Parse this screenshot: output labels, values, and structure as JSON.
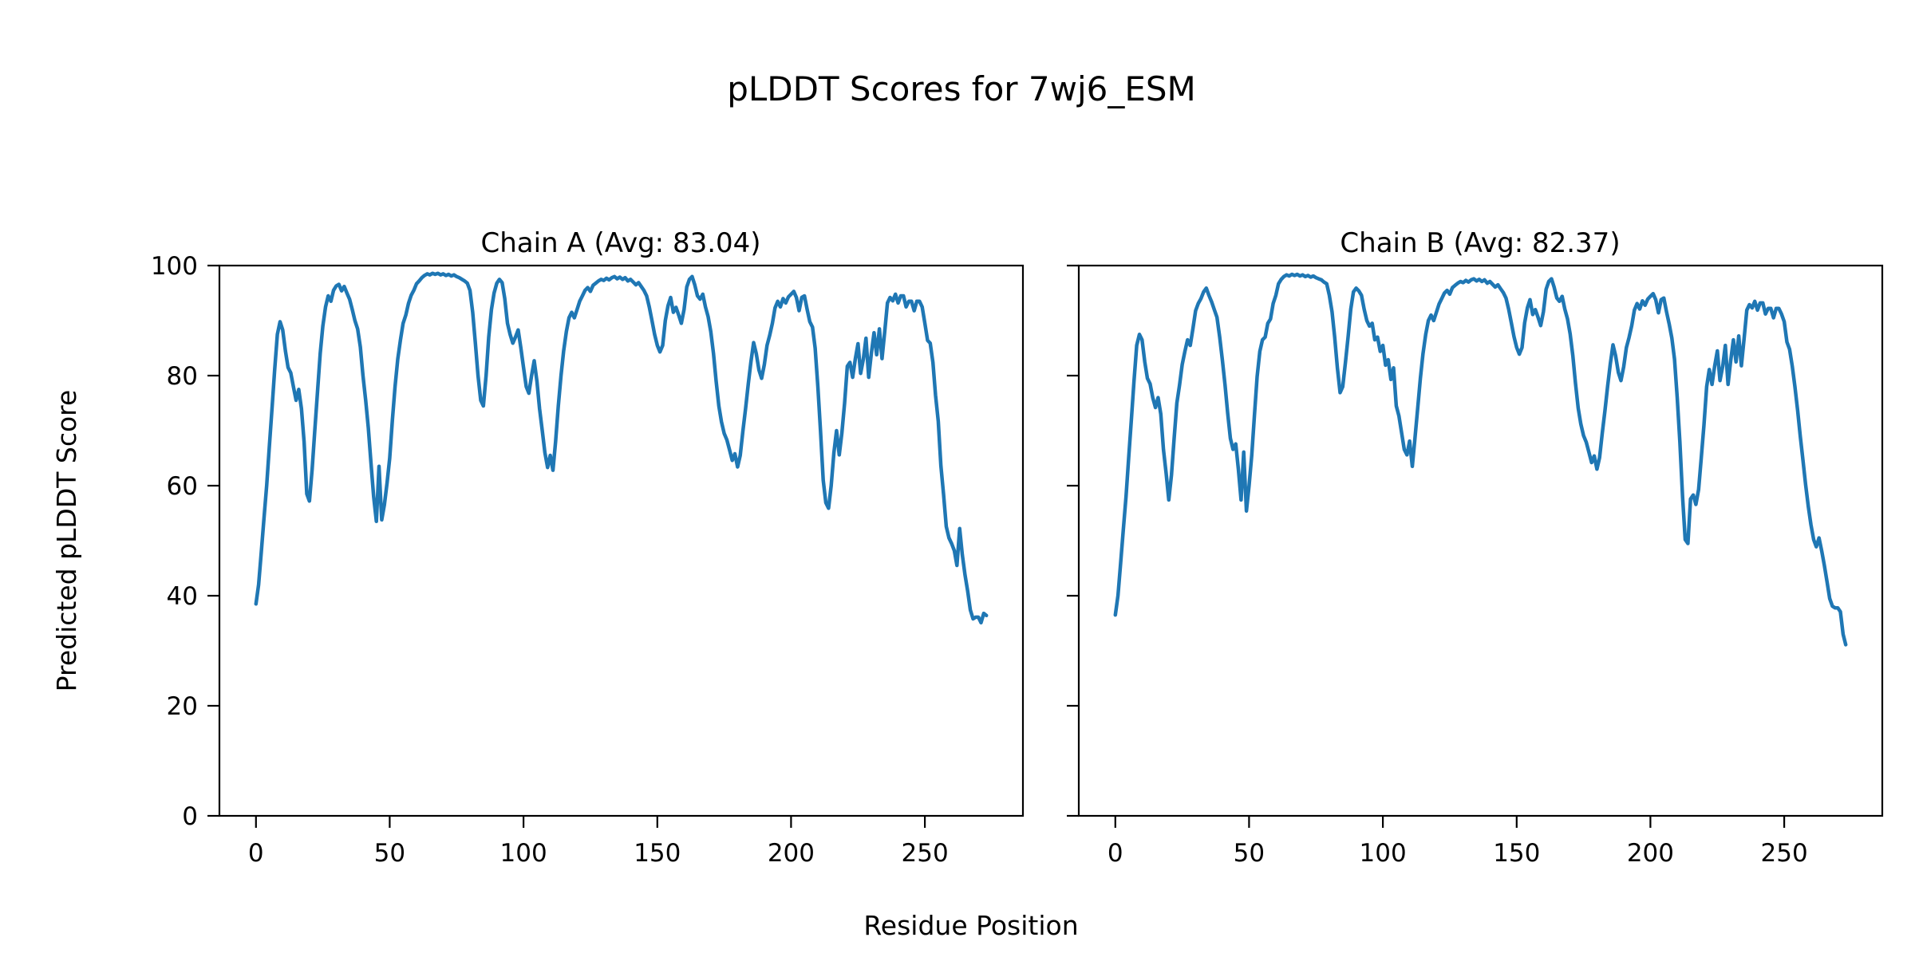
{
  "figure": {
    "suptitle": "pLDDT Scores for 7wj6_ESM",
    "xlabel": "Residue Position",
    "ylabel": "Predicted pLDDT Score",
    "line_color": "#1f77b4",
    "background": "#ffffff"
  },
  "chart_data": [
    {
      "type": "line",
      "title": "Chain A (Avg: 83.04)",
      "chain": "A",
      "avg_label": "83.04",
      "xlabel": "Residue Position",
      "ylabel": "Predicted pLDDT Score",
      "ylim": [
        0,
        100
      ],
      "xticks": [
        0,
        50,
        100,
        150,
        200,
        250
      ],
      "yticks": [
        0,
        20,
        40,
        60,
        80,
        100
      ],
      "show_ytick_labels": true,
      "grid": false,
      "legend": "none",
      "x_start": 0,
      "values": [
        38.5,
        42,
        48,
        54,
        60,
        67,
        74,
        81,
        87.5,
        89.8,
        88.3,
        84.5,
        81.5,
        80.5,
        78,
        75.5,
        77.5,
        74,
        68,
        58.5,
        57.2,
        63,
        70,
        77,
        84,
        89,
        92.5,
        94.5,
        93.5,
        95.5,
        96.3,
        96.6,
        95.4,
        96.2,
        95,
        93.9,
        92,
        90,
        88.5,
        85.2,
        80,
        75.5,
        70.5,
        64,
        58,
        53.5,
        63.5,
        53.8,
        56.5,
        60.5,
        65,
        72,
        78,
        83,
        86.5,
        89.5,
        91,
        93.1,
        94.6,
        95.5,
        96.7,
        97.2,
        97.8,
        98.2,
        98.5,
        98.3,
        98.6,
        98.4,
        98.6,
        98.3,
        98.5,
        98.2,
        98.4,
        98.1,
        98.3,
        98,
        97.8,
        97.5,
        97.2,
        96.8,
        95.5,
        91.5,
        86,
        80,
        75.5,
        74.5,
        80,
        87,
        92,
        95,
        96.8,
        97.5,
        96.9,
        94,
        89.5,
        87.5,
        85.9,
        87,
        88.3,
        85,
        81.5,
        78,
        76.8,
        80,
        82.7,
        79,
        74,
        70,
        66,
        63.3,
        65.5,
        62.8,
        68,
        74.5,
        80,
        84.5,
        88,
        90.5,
        91.5,
        90.5,
        92,
        93.5,
        94.5,
        95.5,
        96,
        95.3,
        96.4,
        96.8,
        97.2,
        97.5,
        97.3,
        97.7,
        97.4,
        97.8,
        98,
        97.6,
        97.9,
        97.5,
        97.8,
        97.2,
        97.5,
        97,
        96.5,
        96.9,
        96.2,
        95.5,
        94.5,
        92.5,
        90,
        87.5,
        85.5,
        84.3,
        85.5,
        90,
        92.7,
        94.2,
        91.5,
        92.4,
        91,
        89.5,
        92,
        96.1,
        97.5,
        98,
        96.5,
        94.5,
        93.9,
        94.8,
        92.5,
        90.7,
        88,
        84,
        79,
        74.5,
        71.6,
        69.5,
        68.3,
        66.5,
        64.6,
        65.8,
        63.4,
        65.5,
        70,
        74,
        78.5,
        82.5,
        86,
        84,
        81,
        79.5,
        82,
        85.5,
        87.3,
        89.5,
        92.3,
        93.5,
        92.5,
        94,
        93.2,
        94.3,
        94.8,
        95.3,
        94.2,
        91.8,
        94.2,
        94.5,
        92,
        89.8,
        88.8,
        85,
        78,
        70,
        61,
        56.9,
        55.9,
        60,
        66,
        70,
        65.6,
        69.6,
        75,
        81.7,
        82.4,
        79.7,
        83,
        85.8,
        80.4,
        83,
        86.8,
        79.7,
        84,
        87.8,
        83.8,
        88.5,
        83.1,
        88,
        93.2,
        94.2,
        93.6,
        94.8,
        93.2,
        94.5,
        94.5,
        92.5,
        93.5,
        93.5,
        91.8,
        93.5,
        93.5,
        92.5,
        89.5,
        86.4,
        85.9,
        82.4,
        76.4,
        71.7,
        63.6,
        58.3,
        52.6,
        50.5,
        49.5,
        48.2,
        45.5,
        52.2,
        47.5,
        43.8,
        40.8,
        37.4,
        35.8,
        36.1,
        36.1,
        35.1,
        36.8,
        36.4
      ]
    },
    {
      "type": "line",
      "title": "Chain B (Avg: 82.37)",
      "chain": "B",
      "avg_label": "82.37",
      "xlabel": "Residue Position",
      "ylabel": "Predicted pLDDT Score",
      "ylim": [
        0,
        100
      ],
      "xticks": [
        0,
        50,
        100,
        150,
        200,
        250
      ],
      "yticks": [
        0,
        20,
        40,
        60,
        80,
        100
      ],
      "show_ytick_labels": false,
      "grid": false,
      "legend": "none",
      "x_start": 0,
      "values": [
        36.5,
        40,
        46,
        52,
        58,
        65,
        72,
        79,
        85.5,
        87.5,
        86.5,
        82.5,
        79.5,
        78.5,
        76,
        74.2,
        76,
        73,
        66.6,
        62.2,
        57.4,
        62,
        68.6,
        75,
        78.3,
        82,
        84.4,
        86.5,
        85.5,
        88.5,
        91.8,
        93.1,
        94,
        95.2,
        95.9,
        94.6,
        93.4,
        92,
        90.6,
        87,
        82.9,
        78.3,
        73.2,
        68.6,
        66.6,
        67.6,
        63,
        57.4,
        66.1,
        55.4,
        60,
        65.6,
        72.7,
        79.8,
        84.4,
        86.5,
        87,
        89.5,
        90.3,
        93.1,
        94.6,
        96.7,
        97.5,
        98,
        98.3,
        98.1,
        98.4,
        98.2,
        98.4,
        98.1,
        98.3,
        98,
        98.2,
        97.9,
        98.1,
        97.8,
        97.6,
        97.4,
        97,
        96.7,
        94.6,
        91.6,
        87,
        81.4,
        76.9,
        78,
        82.4,
        87,
        92.1,
        95.2,
        95.9,
        95.4,
        94.6,
        92.1,
        90,
        89,
        89.5,
        86.5,
        87,
        84.4,
        85.5,
        81.9,
        82.9,
        79.3,
        81.4,
        74.5,
        72.7,
        69.6,
        66.6,
        65.6,
        68.1,
        63.5,
        68.6,
        74,
        79.5,
        84,
        87.5,
        90,
        91,
        90,
        91.5,
        93,
        94,
        95,
        95.5,
        94.8,
        96,
        96.4,
        96.8,
        97.1,
        96.9,
        97.3,
        97,
        97.4,
        97.6,
        97.2,
        97.5,
        97.1,
        97.4,
        96.8,
        97.1,
        96.6,
        96.1,
        96.5,
        95.8,
        95.1,
        94.1,
        92.1,
        89.6,
        87.1,
        85.1,
        83.9,
        85.1,
        89.6,
        92.3,
        93.8,
        91.1,
        92,
        90.6,
        89.1,
        91.6,
        95.7,
        97.1,
        97.6,
        96.1,
        94.1,
        93.5,
        94.4,
        92.1,
        90.3,
        87.6,
        83.6,
        78.6,
        74.1,
        71.2,
        69.1,
        67.9,
        66.1,
        64.2,
        65.4,
        63,
        65.1,
        69.6,
        73.6,
        78.1,
        82.1,
        85.6,
        83.6,
        80.6,
        79.1,
        81.6,
        85.1,
        86.9,
        89.1,
        91.9,
        93.1,
        92.1,
        93.6,
        92.8,
        93.9,
        94.4,
        94.9,
        93.8,
        91.4,
        93.8,
        94.1,
        91.6,
        89.4,
        86.8,
        83,
        76,
        68,
        58,
        50.2,
        49.5,
        57.6,
        58.3,
        56.6,
        59.3,
        65,
        71,
        78,
        81.1,
        78.4,
        81.7,
        84.5,
        79.1,
        81.7,
        85.5,
        78.4,
        82.7,
        86.5,
        82.5,
        87.2,
        81.8,
        86.7,
        91.9,
        92.9,
        92.3,
        93.5,
        91.9,
        93.2,
        93.2,
        91.2,
        92.2,
        92.2,
        90.5,
        92.2,
        92.2,
        91.2,
        89.8,
        86.1,
        84.8,
        81.7,
        78,
        73.7,
        69,
        64.6,
        60.2,
        56.2,
        52.9,
        50.2,
        48.9,
        50.5,
        48.2,
        45.5,
        42.5,
        39.5,
        38.1,
        37.8,
        37.8,
        37.1,
        33,
        31.1
      ]
    }
  ]
}
